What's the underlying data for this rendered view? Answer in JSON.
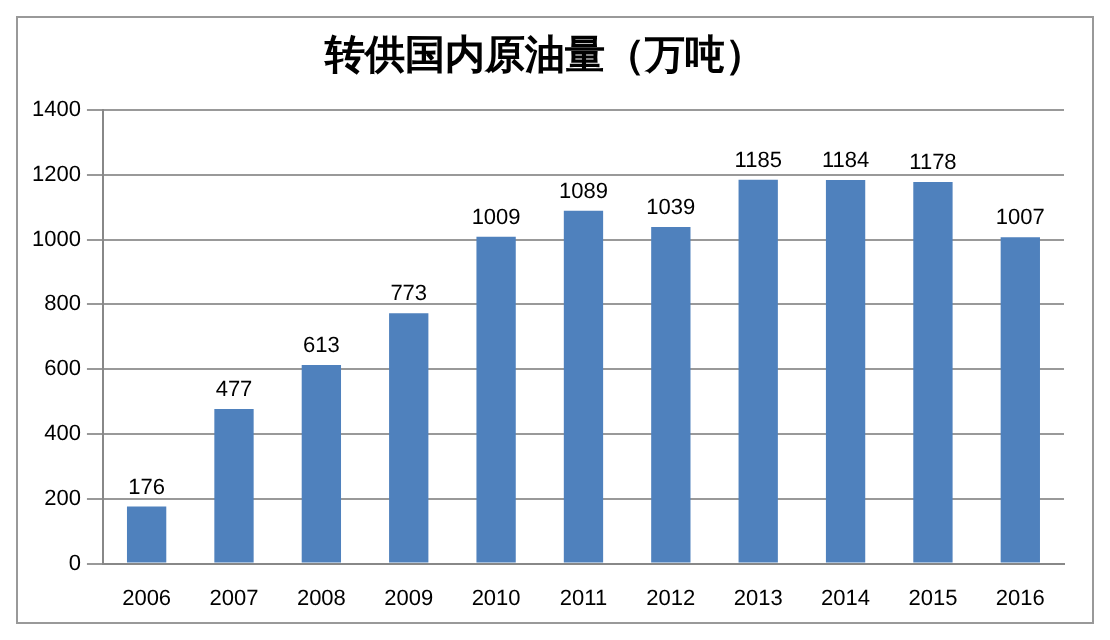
{
  "chart_data": {
    "type": "bar",
    "title": "转供国内原油量（万吨）",
    "categories": [
      "2006",
      "2007",
      "2008",
      "2009",
      "2010",
      "2011",
      "2012",
      "2013",
      "2014",
      "2015",
      "2016"
    ],
    "values": [
      176,
      477,
      613,
      773,
      1009,
      1089,
      1039,
      1185,
      1184,
      1178,
      1007
    ],
    "color": "#4f81bd",
    "ylim": [
      0,
      1400
    ],
    "yticks": [
      0,
      200,
      400,
      600,
      800,
      1000,
      1200,
      1400
    ],
    "grid": "y",
    "data_labels": true,
    "legend": false
  }
}
